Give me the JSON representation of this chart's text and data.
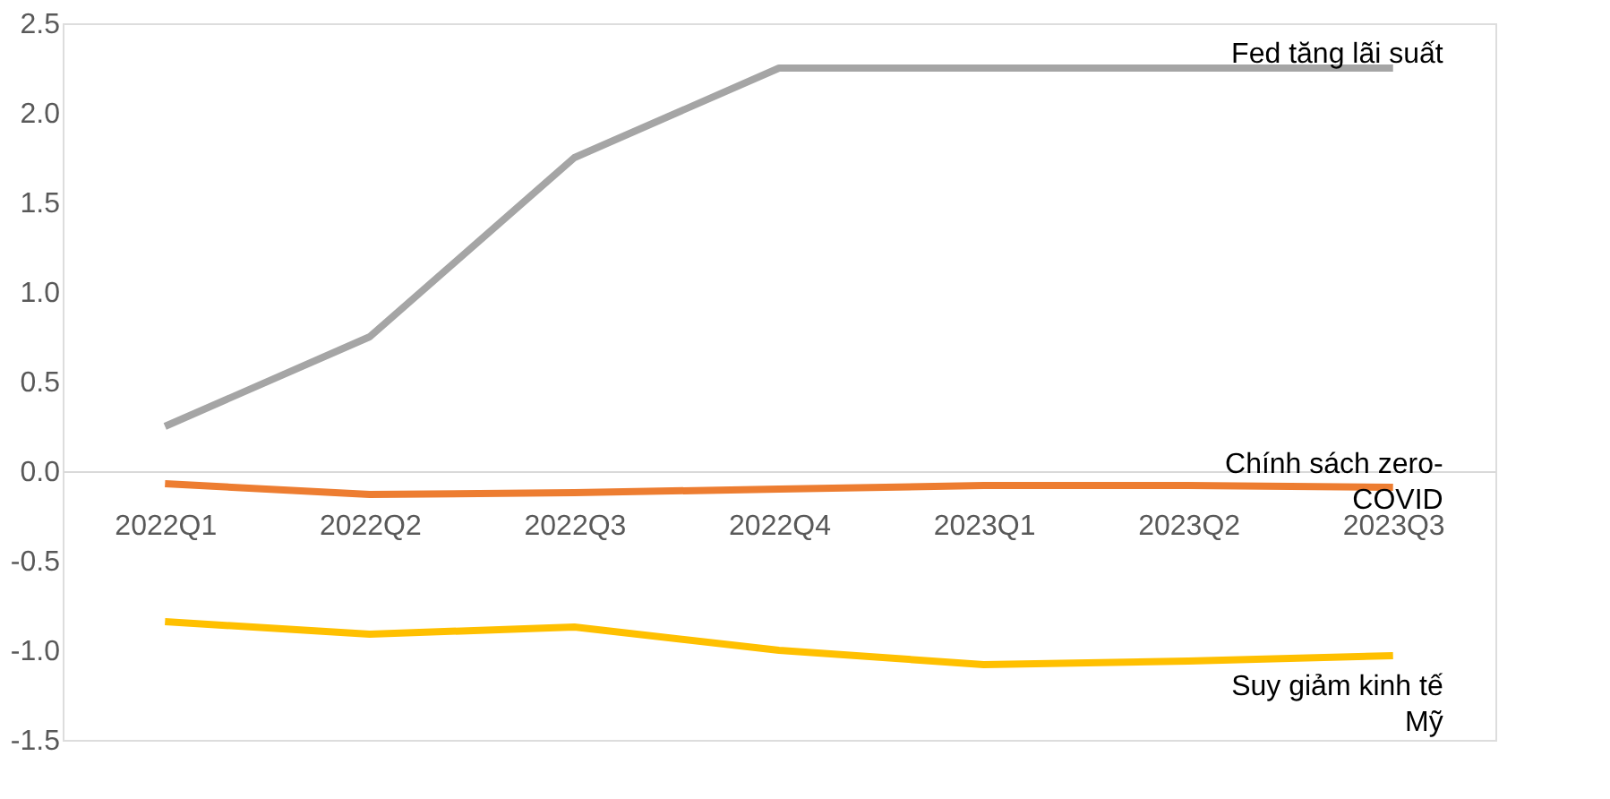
{
  "chart_data": {
    "type": "line",
    "categories": [
      "2022Q1",
      "2022Q2",
      "2022Q3",
      "2022Q4",
      "2023Q1",
      "2023Q2",
      "2023Q3"
    ],
    "series": [
      {
        "name": "Fed tăng lãi suất",
        "color": "#a5a5a5",
        "values": [
          0.25,
          0.75,
          1.75,
          2.25,
          2.25,
          2.25,
          2.25
        ]
      },
      {
        "name": "Chính sách zero-COVID",
        "color": "#ed7d31",
        "values": [
          -0.07,
          -0.13,
          -0.12,
          -0.1,
          -0.08,
          -0.08,
          -0.09
        ]
      },
      {
        "name": "Suy giảm kinh tế Mỹ",
        "color": "#ffc000",
        "values": [
          -0.84,
          -0.91,
          -0.87,
          -1.0,
          -1.08,
          -1.06,
          -1.03
        ]
      }
    ],
    "ylim": [
      -1.5,
      2.5
    ],
    "yticks": [
      {
        "value": -1.5,
        "label": "-1.5"
      },
      {
        "value": -1,
        "label": "-1.0"
      },
      {
        "value": -0.5,
        "label": "-0.5"
      },
      {
        "value": 0,
        "label": "0.0"
      },
      {
        "value": 0.5,
        "label": "0.5"
      },
      {
        "value": 1,
        "label": "1.0"
      },
      {
        "value": 1.5,
        "label": "1.5"
      },
      {
        "value": 2,
        "label": "2.0"
      },
      {
        "value": 2.5,
        "label": "2.5"
      }
    ],
    "grid": false,
    "legend": false,
    "marker": "none",
    "line_style": "solid"
  }
}
